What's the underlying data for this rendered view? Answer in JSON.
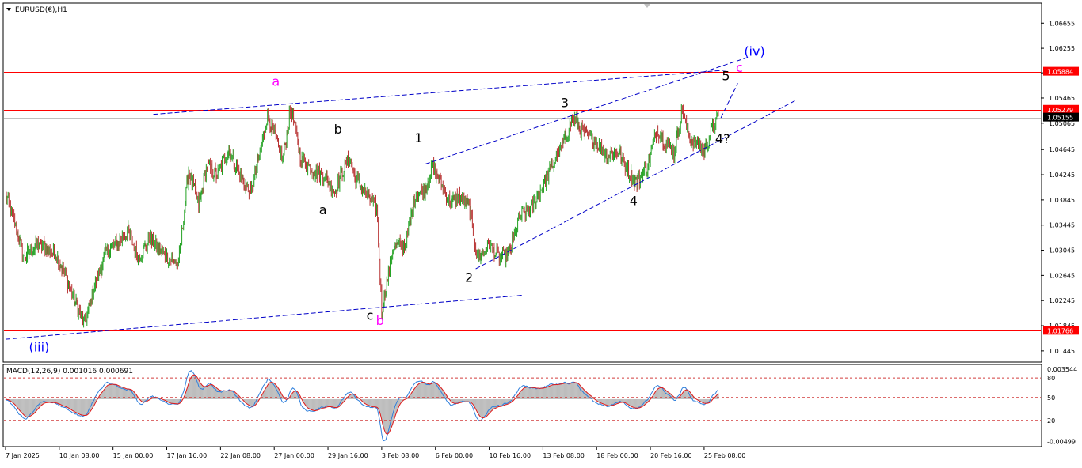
{
  "chart_data": {
    "type": "line",
    "title": "EURUSD(€),H1",
    "ylim": [
      1.0128,
      1.0696
    ],
    "price_ticks": [
      "1.06655",
      "1.06255",
      "1.05865",
      "1.05465",
      "1.05065",
      "1.04645",
      "1.04245",
      "1.03845",
      "1.03445",
      "1.03045",
      "1.02645",
      "1.02245",
      "1.01845",
      "1.01445"
    ],
    "price_tick_values": [
      1.06655,
      1.06255,
      1.05865,
      1.05465,
      1.05065,
      1.04645,
      1.04245,
      1.03845,
      1.03445,
      1.03045,
      1.02645,
      1.02245,
      1.01845,
      1.01445
    ],
    "levels": [
      {
        "label": "1.05884",
        "value": 1.05884,
        "color": "#ff0000"
      },
      {
        "label": "1.05279",
        "value": 1.05279,
        "color": "#ff0000"
      },
      {
        "label": "1.05155",
        "value": 1.05155,
        "color": "#c0c0c0"
      },
      {
        "label": "1.01766",
        "value": 1.01766,
        "color": "#ff0000"
      }
    ],
    "x_ticks": [
      "7 Jan 2025",
      "10 Jan 08:00",
      "15 Jan 00:00",
      "17 Jan 16:00",
      "22 Jan 08:00",
      "27 Jan 00:00",
      "29 Jan 16:00",
      "3 Feb 08:00",
      "6 Feb 00:00",
      "10 Feb 16:00",
      "13 Feb 08:00",
      "18 Feb 00:00",
      "20 Feb 16:00",
      "25 Feb 08:00"
    ],
    "x_tick_index": [
      0,
      64,
      128,
      192,
      256,
      320,
      384,
      448,
      512,
      576,
      640,
      704,
      768,
      832
    ],
    "bars_visible": 850,
    "price_anchors": [
      [
        0,
        1.0392
      ],
      [
        10,
        1.0352
      ],
      [
        22,
        1.0292
      ],
      [
        40,
        1.0315
      ],
      [
        60,
        1.0298
      ],
      [
        72,
        1.0262
      ],
      [
        84,
        1.0218
      ],
      [
        94,
        1.0188
      ],
      [
        106,
        1.0248
      ],
      [
        120,
        1.0302
      ],
      [
        134,
        1.0316
      ],
      [
        146,
        1.0335
      ],
      [
        158,
        1.0292
      ],
      [
        172,
        1.0322
      ],
      [
        188,
        1.0298
      ],
      [
        206,
        1.0282
      ],
      [
        218,
        1.0432
      ],
      [
        230,
        1.0375
      ],
      [
        240,
        1.044
      ],
      [
        252,
        1.0422
      ],
      [
        266,
        1.0465
      ],
      [
        280,
        1.042
      ],
      [
        292,
        1.0395
      ],
      [
        302,
        1.0452
      ],
      [
        312,
        1.052
      ],
      [
        322,
        1.0478
      ],
      [
        330,
        1.0448
      ],
      [
        340,
        1.0532
      ],
      [
        352,
        1.0448
      ],
      [
        366,
        1.0432
      ],
      [
        380,
        1.0422
      ],
      [
        392,
        1.0398
      ],
      [
        402,
        1.0432
      ],
      [
        410,
        1.0452
      ],
      [
        416,
        1.042
      ],
      [
        430,
        1.0392
      ],
      [
        442,
        1.0372
      ],
      [
        448,
        1.0208
      ],
      [
        462,
        1.0312
      ],
      [
        476,
        1.0312
      ],
      [
        488,
        1.0392
      ],
      [
        500,
        1.0402
      ],
      [
        508,
        1.0438
      ],
      [
        518,
        1.0412
      ],
      [
        530,
        1.0378
      ],
      [
        540,
        1.0392
      ],
      [
        552,
        1.0375
      ],
      [
        562,
        1.0292
      ],
      [
        576,
        1.0312
      ],
      [
        588,
        1.0292
      ],
      [
        600,
        1.0298
      ],
      [
        612,
        1.0358
      ],
      [
        626,
        1.0372
      ],
      [
        638,
        1.0402
      ],
      [
        648,
        1.0432
      ],
      [
        660,
        1.0462
      ],
      [
        668,
        1.0488
      ],
      [
        676,
        1.0516
      ],
      [
        690,
        1.0488
      ],
      [
        702,
        1.0478
      ],
      [
        716,
        1.0455
      ],
      [
        730,
        1.0462
      ],
      [
        740,
        1.0432
      ],
      [
        752,
        1.0412
      ],
      [
        764,
        1.0438
      ],
      [
        776,
        1.0498
      ],
      [
        786,
        1.0476
      ],
      [
        796,
        1.0458
      ],
      [
        806,
        1.0528
      ],
      [
        814,
        1.0482
      ],
      [
        824,
        1.0472
      ],
      [
        832,
        1.0462
      ],
      [
        842,
        1.0498
      ],
      [
        848,
        1.0515
      ]
    ],
    "macd": {
      "label": "MACD(12,26,9) 0.001016 0.000691",
      "ylim": [
        -0.0055,
        0.004
      ],
      "ticks": [
        "0.003544",
        "80",
        "50",
        "20",
        "-0.00499"
      ],
      "ticks_values": [
        0.003544,
        0.0025,
        0.0002,
        -0.0025,
        -0.00499
      ],
      "levels": [
        0.0025,
        0.0002,
        -0.0025
      ]
    },
    "annotations": [
      {
        "text": "a",
        "color": "#ff00ff",
        "bar": 322,
        "price": 1.0566
      },
      {
        "text": "b",
        "color": "#000000",
        "bar": 396,
        "price": 1.049
      },
      {
        "text": "a",
        "color": "#000000",
        "bar": 378,
        "price": 1.0362
      },
      {
        "text": "1",
        "color": "#000000",
        "bar": 492,
        "price": 1.0476
      },
      {
        "text": "c",
        "color": "#000000",
        "bar": 434,
        "price": 1.0194
      },
      {
        "text": "b",
        "color": "#ff00ff",
        "bar": 446,
        "price": 1.0186
      },
      {
        "text": "2",
        "color": "#000000",
        "bar": 552,
        "price": 1.0254
      },
      {
        "text": "3",
        "color": "#000000",
        "bar": 666,
        "price": 1.0532
      },
      {
        "text": "4",
        "color": "#000000",
        "bar": 748,
        "price": 1.0376
      },
      {
        "text": "4?",
        "color": "#000000",
        "bar": 854,
        "price": 1.0475
      },
      {
        "text": "5",
        "color": "#000000",
        "bar": 858,
        "price": 1.0575
      },
      {
        "text": "c",
        "color": "#ff00ff",
        "bar": 874,
        "price": 1.0588
      },
      {
        "text": "(iv)",
        "color": "#0000ff",
        "bar": 892,
        "price": 1.0614
      },
      {
        "text": "(iii)",
        "color": "#0000ff",
        "bar": 40,
        "price": 1.0144
      }
    ],
    "trendlines": [
      {
        "from": [
          176,
          1.05205
        ],
        "to": [
          860,
          1.0591
        ]
      },
      {
        "from": [
          500,
          1.04415
        ],
        "to": [
          884,
          1.0611
        ]
      },
      {
        "from": [
          0,
          1.0163
        ],
        "to": [
          616,
          1.0233
        ]
      },
      {
        "from": [
          560,
          1.0275
        ],
        "to": [
          940,
          1.0542
        ]
      },
      {
        "from": [
          852,
          1.0515
        ],
        "to": [
          872,
          1.057
        ]
      }
    ]
  }
}
